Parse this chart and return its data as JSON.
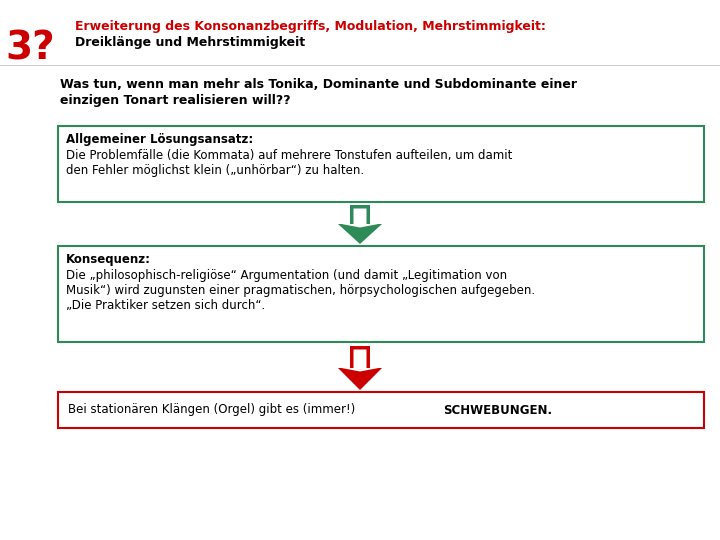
{
  "bg_color": "#ffffff",
  "header_num": "3?",
  "header_num_color": "#cc0000",
  "header_title_line1": "Erweiterung des Konsonanzbegriffs, Modulation, Mehrstimmigkeit:",
  "header_title_line2": "Dreiklänge und Mehrstimmigkeit",
  "header_title1_color": "#cc0000",
  "header_title2_color": "#000000",
  "intro_text_line1": "Was tun, wenn man mehr als Tonika, Dominante und Subdominante einer",
  "intro_text_line2": "einzigen Tonart realisieren will??",
  "box1_title": "Allgemeiner Lösungsansatz:",
  "box1_body_line1": "Die Problemfälle (die Kommata) auf mehrere Tonstufen aufteilen, um damit",
  "box1_body_line2": "den Fehler möglichst klein („unhörbar“) zu halten.",
  "box1_border": "#2e8b57",
  "arrow1_color": "#2e8b57",
  "box2_title": "Konsequenz:",
  "box2_body_line1": "Die „philosophisch-religiöse“ Argumentation (und damit „Legitimation von",
  "box2_body_line2": "Musik“) wird zugunsten einer pragmatischen, hörpsychologischen aufgegeben.",
  "box2_body_line3": "„Die Praktiker setzen sich durch“.",
  "box2_border": "#2e8b57",
  "arrow2_color": "#cc0000",
  "box3_text_normal": "Bei stationären Klängen (Orgel) gibt es (immer!) ",
  "box3_text_bold": "SCHWEBUNGEN.",
  "box3_border": "#cc0000",
  "font_size_num": 28,
  "font_size_header1": 9,
  "font_size_header2": 9,
  "font_size_intro": 9,
  "font_size_box": 8.5
}
